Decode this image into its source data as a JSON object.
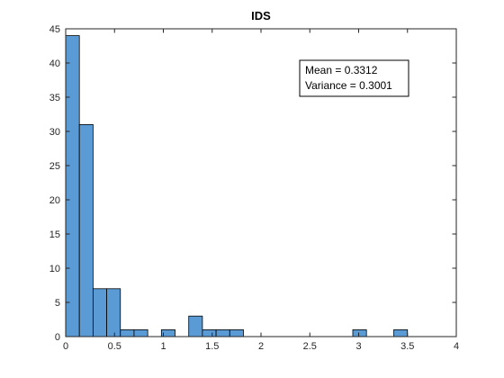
{
  "chart_data": {
    "type": "bar",
    "title": "IDS",
    "xlabel": "",
    "ylabel": "",
    "bin_width": 0.14,
    "bin_start": 0,
    "x": [
      0.07,
      0.21,
      0.35,
      0.49,
      0.63,
      0.77,
      0.91,
      1.05,
      1.19,
      1.33,
      1.47,
      1.61,
      1.75,
      1.89,
      2.03,
      2.17,
      2.31,
      2.45,
      2.59,
      2.73,
      2.87,
      3.01,
      3.15,
      3.29,
      3.43
    ],
    "values": [
      44,
      31,
      7,
      7,
      1,
      1,
      0,
      1,
      0,
      3,
      1,
      1,
      1,
      0,
      0,
      0,
      0,
      0,
      0,
      0,
      0,
      1,
      0,
      0,
      1
    ],
    "xlim": [
      0,
      4
    ],
    "ylim": [
      0,
      45
    ],
    "xticks": [
      0,
      0.5,
      1,
      1.5,
      2,
      2.5,
      3,
      3.5,
      4
    ],
    "xtick_labels": [
      "0",
      "0.5",
      "1",
      "1.5",
      "2",
      "2.5",
      "3",
      "3.5",
      "4"
    ],
    "yticks": [
      0,
      5,
      10,
      15,
      20,
      25,
      30,
      35,
      40,
      45
    ],
    "ytick_labels": [
      "0",
      "5",
      "10",
      "15",
      "20",
      "25",
      "30",
      "35",
      "40",
      "45"
    ],
    "grid": false,
    "annotations": [
      "Mean = 0.3312",
      "Variance = 0.3001"
    ],
    "colors": {
      "bar_fill": "#5b9bd5",
      "bar_edge": "#000000",
      "axis": "#262626"
    }
  }
}
